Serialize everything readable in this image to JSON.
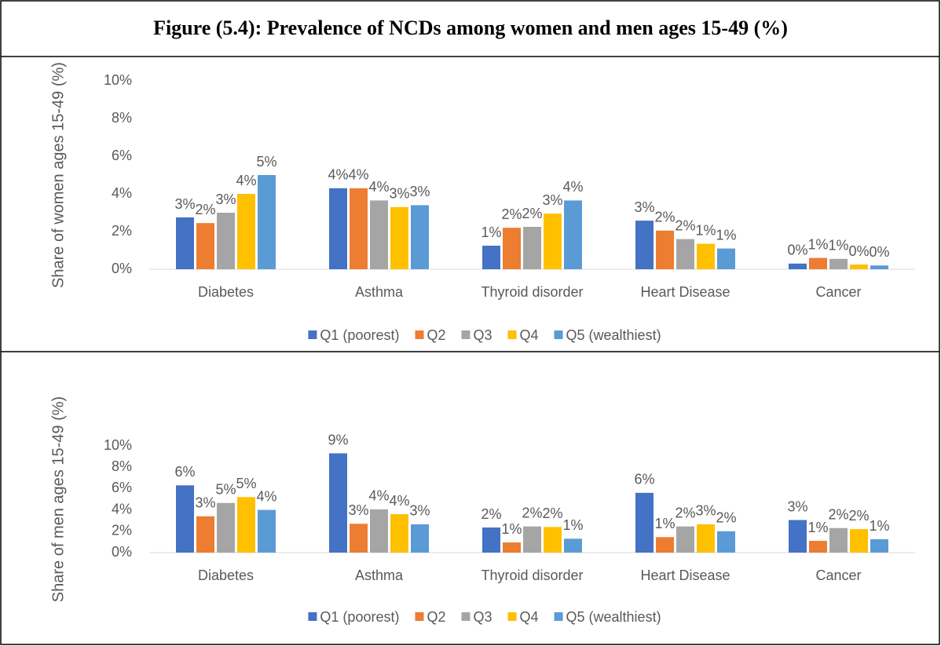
{
  "title": "Figure (5.4):  Prevalence of NCDs among women and men ages 15-49 (%)",
  "chart_data": [
    {
      "type": "bar",
      "ylabel": "Share of women ages 15-49 (%)",
      "categories": [
        "Diabetes",
        "Asthma",
        "Thyroid disorder",
        "Heart Disease",
        "Cancer"
      ],
      "ylim": [
        0,
        10
      ],
      "yticks": [
        {
          "value": 0,
          "label": "0%"
        },
        {
          "value": 2,
          "label": "2%"
        },
        {
          "value": 4,
          "label": "4%"
        },
        {
          "value": 6,
          "label": "6%"
        },
        {
          "value": 8,
          "label": "8%"
        },
        {
          "value": 10,
          "label": "10%"
        }
      ],
      "grid": false,
      "legend": "bottom",
      "series": [
        {
          "name": "Q1 (poorest)",
          "color": "#4472c4",
          "values": [
            2.75,
            4.3,
            1.25,
            2.58,
            0.3
          ],
          "value_labels": [
            "3%",
            "4%",
            "1%",
            "3%",
            "0%"
          ]
        },
        {
          "name": "Q2",
          "color": "#ed7d31",
          "values": [
            2.45,
            4.3,
            2.2,
            2.05,
            0.6
          ],
          "value_labels": [
            "2%",
            "4%",
            "2%",
            "2%",
            "1%"
          ]
        },
        {
          "name": "Q3",
          "color": "#a5a5a5",
          "values": [
            3.0,
            3.65,
            2.25,
            1.6,
            0.55
          ],
          "value_labels": [
            "3%",
            "4%",
            "2%",
            "2%",
            "1%"
          ]
        },
        {
          "name": "Q4",
          "color": "#ffc000",
          "values": [
            4.0,
            3.3,
            2.95,
            1.35,
            0.25
          ],
          "value_labels": [
            "4%",
            "3%",
            "3%",
            "1%",
            "0%"
          ]
        },
        {
          "name": "Q5 (wealthiest)",
          "color": "#5b9bd5",
          "values": [
            5.0,
            3.4,
            3.65,
            1.1,
            0.2
          ],
          "value_labels": [
            "5%",
            "3%",
            "4%",
            "1%",
            "0%"
          ]
        }
      ]
    },
    {
      "type": "bar",
      "ylabel": "Share of men ages 15-49 (%)",
      "categories": [
        "Diabetes",
        "Asthma",
        "Thyroid disorder",
        "Heart Disease",
        "Cancer"
      ],
      "ylim": [
        0,
        10
      ],
      "yticks": [
        {
          "value": 0,
          "label": "0%"
        },
        {
          "value": 2,
          "label": "2%"
        },
        {
          "value": 4,
          "label": "4%"
        },
        {
          "value": 6,
          "label": "6%"
        },
        {
          "value": 8,
          "label": "8%"
        },
        {
          "value": 10,
          "label": "10%"
        }
      ],
      "grid": false,
      "legend": "bottom",
      "series": [
        {
          "name": "Q1 (poorest)",
          "color": "#4472c4",
          "values": [
            6.3,
            9.3,
            2.35,
            5.6,
            3.05
          ],
          "value_labels": [
            "6%",
            "9%",
            "2%",
            "6%",
            "3%"
          ]
        },
        {
          "name": "Q2",
          "color": "#ed7d31",
          "values": [
            3.4,
            2.7,
            0.95,
            1.45,
            1.1
          ],
          "value_labels": [
            "3%",
            "3%",
            "1%",
            "1%",
            "1%"
          ]
        },
        {
          "name": "Q3",
          "color": "#a5a5a5",
          "values": [
            4.65,
            4.05,
            2.45,
            2.45,
            2.3
          ],
          "value_labels": [
            "5%",
            "4%",
            "2%",
            "2%",
            "2%"
          ]
        },
        {
          "name": "Q4",
          "color": "#ffc000",
          "values": [
            5.2,
            3.6,
            2.4,
            2.65,
            2.2
          ],
          "value_labels": [
            "5%",
            "4%",
            "2%",
            "3%",
            "2%"
          ]
        },
        {
          "name": "Q5 (wealthiest)",
          "color": "#5b9bd5",
          "values": [
            4.0,
            2.65,
            1.3,
            2.0,
            1.25
          ],
          "value_labels": [
            "4%",
            "3%",
            "1%",
            "2%",
            "1%"
          ]
        }
      ]
    }
  ]
}
